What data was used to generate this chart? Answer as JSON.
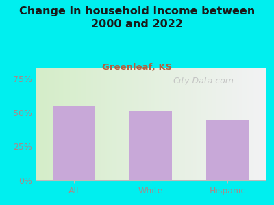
{
  "title": "Change in household income between\n2000 and 2022",
  "subtitle": "Greenleaf, KS",
  "categories": [
    "All",
    "White",
    "Hispanic"
  ],
  "values": [
    55.0,
    51.0,
    45.0
  ],
  "bar_color": "#c8a8d8",
  "background_color": "#00efef",
  "plot_bg_color_left": "#d4edc8",
  "plot_bg_color_right": "#f2f2f4",
  "title_color": "#1a1a1a",
  "subtitle_color": "#b06040",
  "tick_color": "#aa8888",
  "yticks": [
    0,
    25,
    50,
    75
  ],
  "ytick_labels": [
    "0%",
    "25%",
    "50%",
    "75%"
  ],
  "ylim": [
    0,
    83
  ],
  "watermark": "City-Data.com",
  "watermark_color": "#c0c0c0",
  "title_fontsize": 11.5,
  "subtitle_fontsize": 9.5,
  "tick_fontsize": 9
}
